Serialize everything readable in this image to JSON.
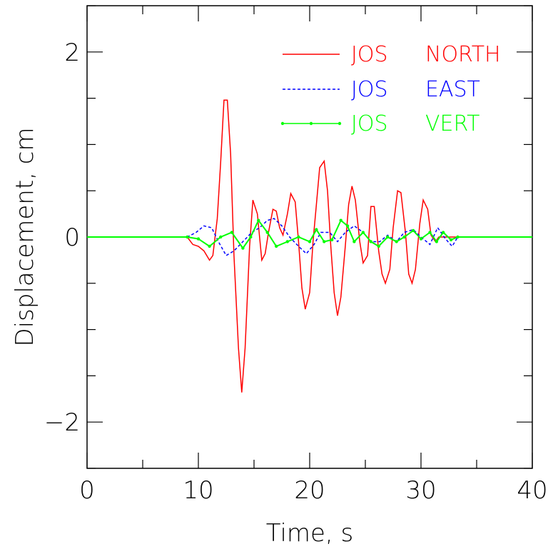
{
  "chart_data": {
    "type": "line",
    "xlabel": "Time,  s",
    "ylabel": "Displacement,  cm",
    "xlim": [
      0,
      40
    ],
    "ylim": [
      -2.5,
      2.5
    ],
    "xticks": [
      0,
      10,
      20,
      30,
      40
    ],
    "yticks": [
      -2,
      0,
      2
    ],
    "xtick_labels": [
      "0",
      "10",
      "20",
      "30",
      "40"
    ],
    "ytick_labels": [
      "−2",
      "0",
      "2"
    ],
    "legend_position": "top-right",
    "grid": false,
    "series": [
      {
        "name": "JOS    NORTH",
        "station": "JOS",
        "component": "NORTH",
        "color": "#ff0000",
        "style": "solid",
        "x": [
          0,
          9.0,
          9.5,
          10.0,
          10.5,
          11.0,
          11.3,
          11.7,
          12.0,
          12.3,
          12.6,
          12.9,
          13.2,
          13.6,
          13.9,
          14.2,
          14.6,
          14.9,
          15.3,
          15.7,
          16.0,
          16.3,
          16.7,
          17.0,
          17.3,
          17.6,
          18.0,
          18.3,
          18.7,
          19.0,
          19.3,
          19.6,
          20.0,
          20.3,
          20.6,
          20.9,
          21.3,
          21.6,
          21.9,
          22.2,
          22.5,
          22.8,
          23.2,
          23.5,
          23.8,
          24.1,
          24.5,
          24.8,
          25.2,
          25.5,
          25.8,
          26.2,
          26.5,
          26.8,
          27.2,
          27.5,
          27.9,
          28.2,
          28.6,
          28.9,
          29.2,
          29.5,
          29.9,
          30.2,
          30.6,
          30.9,
          31.3,
          31.6,
          31.9,
          32.2,
          32.5,
          32.9,
          33.2,
          40
        ],
        "y": [
          0,
          0,
          -0.08,
          -0.1,
          -0.15,
          -0.25,
          -0.2,
          0.2,
          0.8,
          1.48,
          1.48,
          0.9,
          -0.2,
          -1.2,
          -1.68,
          -1.2,
          -0.1,
          0.4,
          0.25,
          -0.25,
          -0.18,
          0.05,
          0.3,
          0.28,
          0.1,
          0.02,
          0.25,
          0.47,
          0.38,
          -0.05,
          -0.55,
          -0.78,
          -0.6,
          -0.05,
          0.35,
          0.75,
          0.82,
          0.5,
          -0.1,
          -0.6,
          -0.85,
          -0.65,
          -0.1,
          0.35,
          0.55,
          0.4,
          -0.05,
          -0.28,
          -0.2,
          0.33,
          0.33,
          -0.15,
          -0.4,
          -0.5,
          -0.35,
          0.1,
          0.5,
          0.48,
          0.05,
          -0.4,
          -0.5,
          -0.35,
          0.15,
          0.4,
          0.3,
          0.02,
          -0.05,
          0.0,
          0.0,
          0.0,
          0.0,
          0.0,
          0.0,
          0
        ],
        "values": [
          0,
          0,
          -0.08,
          -0.1,
          -0.15,
          -0.25,
          -0.2,
          0.2,
          0.8,
          1.48,
          1.48,
          0.9,
          -0.2,
          -1.2,
          -1.68,
          -1.2,
          -0.1,
          0.4,
          0.25,
          -0.25,
          -0.18,
          0.05,
          0.3,
          0.28,
          0.1,
          0.02,
          0.25,
          0.47,
          0.38,
          -0.05,
          -0.55,
          -0.78,
          -0.6,
          -0.05,
          0.35,
          0.75,
          0.82,
          0.5,
          -0.1,
          -0.6,
          -0.85,
          -0.65,
          -0.1,
          0.35,
          0.55,
          0.4,
          -0.05,
          -0.28,
          -0.2,
          0.33,
          0.33,
          -0.15,
          -0.4,
          -0.5,
          -0.35,
          0.1,
          0.5,
          0.48,
          0.05,
          -0.4,
          -0.5,
          -0.35,
          0.15,
          0.4,
          0.3,
          0.02,
          -0.05,
          0.0,
          0.0,
          0.0,
          0.0,
          0.0,
          0.0,
          0
        ]
      },
      {
        "name": "JOS    EAST",
        "station": "JOS",
        "component": "EAST",
        "color": "#0000ff",
        "style": "dashed",
        "x": [
          0,
          9.0,
          9.8,
          10.5,
          11.2,
          11.8,
          12.5,
          13.2,
          14.0,
          14.8,
          15.5,
          16.2,
          16.8,
          17.5,
          18.2,
          19.0,
          19.7,
          20.4,
          21.0,
          21.8,
          22.5,
          23.2,
          24.0,
          24.8,
          25.5,
          26.3,
          27.0,
          27.8,
          28.5,
          29.3,
          30.0,
          30.8,
          31.5,
          32.2,
          32.8,
          33.3,
          40
        ],
        "y": [
          0,
          0,
          0.05,
          0.12,
          0.1,
          -0.05,
          -0.2,
          -0.15,
          -0.05,
          0.05,
          0.1,
          0.18,
          0.2,
          0.12,
          0.0,
          -0.1,
          -0.18,
          -0.08,
          0.05,
          0.05,
          -0.05,
          0.05,
          0.12,
          0.05,
          -0.05,
          -0.05,
          0.02,
          -0.05,
          0.05,
          0.08,
          0.0,
          -0.08,
          0.1,
          -0.02,
          -0.1,
          0.0,
          0
        ],
        "values": [
          0,
          0,
          0.05,
          0.12,
          0.1,
          -0.05,
          -0.2,
          -0.15,
          -0.05,
          0.05,
          0.1,
          0.18,
          0.2,
          0.12,
          0.0,
          -0.1,
          -0.18,
          -0.08,
          0.05,
          0.05,
          -0.05,
          0.05,
          0.12,
          0.05,
          -0.05,
          -0.05,
          0.02,
          -0.05,
          0.05,
          0.08,
          0.0,
          -0.08,
          0.1,
          -0.02,
          -0.1,
          0.0,
          0
        ]
      },
      {
        "name": "JOS    VERT",
        "station": "JOS",
        "component": "VERT",
        "color": "#00ff00",
        "style": "solid-with-markers",
        "x": [
          0,
          9.0,
          10.0,
          11.0,
          12.0,
          13.0,
          14.0,
          14.7,
          15.4,
          16.2,
          17.0,
          18.0,
          19.0,
          20.0,
          20.6,
          21.3,
          22.0,
          22.8,
          23.4,
          24.0,
          24.8,
          25.5,
          26.2,
          27.0,
          27.8,
          28.5,
          29.3,
          30.0,
          30.8,
          31.4,
          32.0,
          32.7,
          33.3,
          40
        ],
        "y": [
          0,
          0,
          -0.02,
          -0.1,
          0.0,
          0.05,
          -0.12,
          0.0,
          0.18,
          0.05,
          -0.1,
          -0.05,
          0.0,
          -0.05,
          0.08,
          -0.05,
          -0.03,
          0.18,
          0.12,
          -0.05,
          0.05,
          -0.05,
          -0.1,
          0.0,
          -0.05,
          0.0,
          0.07,
          -0.02,
          0.05,
          -0.05,
          0.05,
          -0.03,
          0.0,
          0
        ],
        "values": [
          0,
          0,
          -0.02,
          -0.1,
          0.0,
          0.05,
          -0.12,
          0.0,
          0.18,
          0.05,
          -0.1,
          -0.05,
          0.0,
          -0.05,
          0.08,
          -0.05,
          -0.03,
          0.18,
          0.12,
          -0.05,
          0.05,
          -0.05,
          -0.1,
          0.0,
          -0.05,
          0.0,
          0.07,
          -0.02,
          0.05,
          -0.05,
          0.05,
          -0.03,
          0.0,
          0
        ]
      }
    ]
  }
}
